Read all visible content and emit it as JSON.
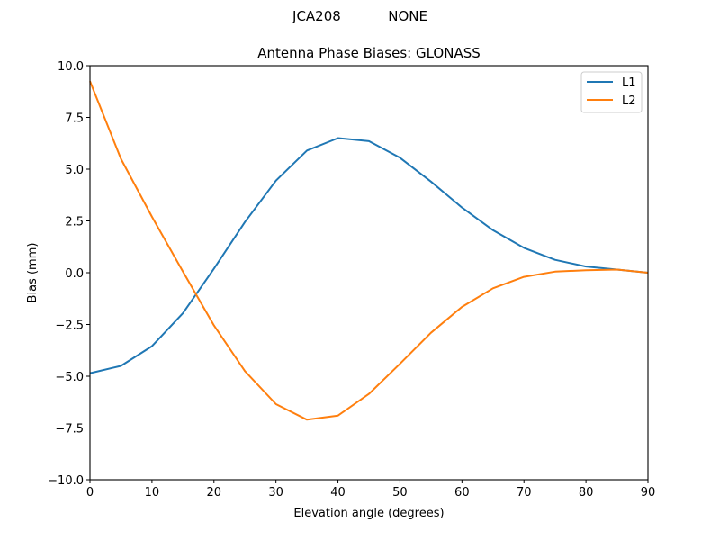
{
  "figure": {
    "suptitle": "JCA208           NONE"
  },
  "chart_data": {
    "type": "line",
    "title": "Antenna Phase Biases: GLONASS",
    "xlabel": "Elevation angle (degrees)",
    "ylabel": "Bias (mm)",
    "xlim": [
      0,
      90
    ],
    "ylim": [
      -10,
      10
    ],
    "xticks": [
      0,
      10,
      20,
      30,
      40,
      50,
      60,
      70,
      80,
      90
    ],
    "xtick_labels": [
      "0",
      "10",
      "20",
      "30",
      "40",
      "50",
      "60",
      "70",
      "80",
      "90"
    ],
    "yticks": [
      -10,
      -7.5,
      -5,
      -2.5,
      0,
      2.5,
      5,
      7.5,
      10
    ],
    "ytick_labels": [
      "−10.0",
      "−7.5",
      "−5.0",
      "−2.5",
      "0.0",
      "2.5",
      "5.0",
      "7.5",
      "10.0"
    ],
    "grid": false,
    "legend_position": "upper right",
    "x": [
      0,
      5,
      10,
      15,
      20,
      25,
      30,
      35,
      40,
      45,
      50,
      55,
      60,
      65,
      70,
      75,
      80,
      85,
      90
    ],
    "series": [
      {
        "name": "L1",
        "color": "#1f77b4",
        "values": [
          -4.85,
          -4.5,
          -3.55,
          -1.95,
          0.2,
          2.45,
          4.45,
          5.9,
          6.5,
          6.35,
          5.55,
          4.4,
          3.15,
          2.05,
          1.2,
          0.62,
          0.3,
          0.15,
          0.0
        ]
      },
      {
        "name": "L2",
        "color": "#ff7f0e",
        "values": [
          9.25,
          5.5,
          2.7,
          0.05,
          -2.55,
          -4.75,
          -6.35,
          -7.1,
          -6.9,
          -5.85,
          -4.4,
          -2.9,
          -1.65,
          -0.75,
          -0.2,
          0.05,
          0.12,
          0.15,
          0.0
        ]
      }
    ]
  }
}
